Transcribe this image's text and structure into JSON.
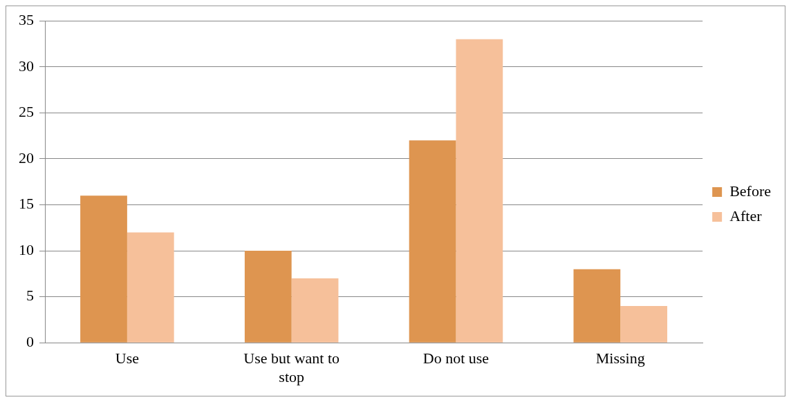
{
  "chart_data": {
    "type": "bar",
    "categories": [
      "Use",
      "Use but want to stop",
      "Do not use",
      "Missing"
    ],
    "series": [
      {
        "name": "Before",
        "color": "#de9550",
        "values": [
          16,
          10,
          22,
          8
        ]
      },
      {
        "name": "After",
        "color": "#f6c09a",
        "values": [
          12,
          7,
          33,
          4
        ]
      }
    ],
    "ylim": [
      0,
      35
    ],
    "yticks": [
      0,
      5,
      10,
      15,
      20,
      25,
      30,
      35
    ],
    "grid": "y",
    "legend": "right"
  }
}
